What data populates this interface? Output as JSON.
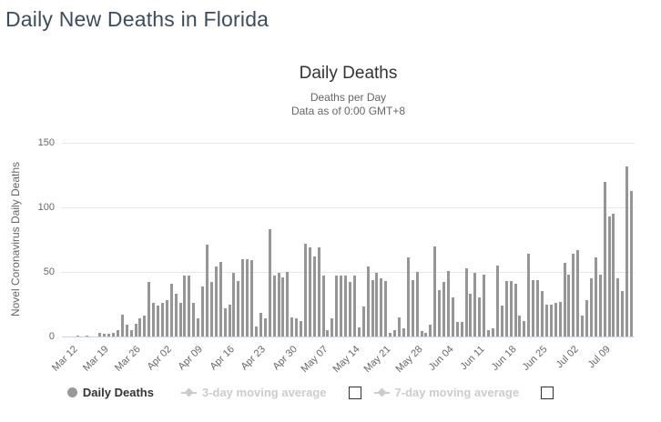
{
  "page": {
    "title": "Daily New Deaths in Florida"
  },
  "chart": {
    "title": "Daily Deaths",
    "subtitle_line1": "Deaths per Day",
    "subtitle_line2": "Data as of 0:00 GMT+8",
    "y_axis_title": "Novel Coronavirus Daily Deaths"
  },
  "legend": {
    "items": [
      {
        "label": "Daily Deaths",
        "marker": "circle",
        "enabled": true,
        "checkbox": false
      },
      {
        "label": "3-day moving average",
        "marker": "diamond-line",
        "enabled": false,
        "checkbox": true,
        "checkbox_checked": false
      },
      {
        "label": "7-day moving average",
        "marker": "diamond-line",
        "enabled": false,
        "checkbox": true,
        "checkbox_checked": false
      }
    ]
  },
  "colors": {
    "bar": "#969696",
    "grid_line": "#e6e6e6",
    "axis_line": "#ccd6eb",
    "page_title": "#3b4c5f",
    "chart_title": "#333333",
    "subtitle": "#666666",
    "axis_label": "#666666",
    "legend_active": "#333333",
    "legend_disabled": "#cccccc",
    "legend_marker": "#999999"
  },
  "chart_data": {
    "type": "bar",
    "title": "Daily Deaths",
    "subtitle": [
      "Deaths per Day",
      "Data as of 0:00 GMT+8"
    ],
    "series_name": "Daily Deaths",
    "xlabel": "",
    "ylabel": "Novel Coronavirus Daily Deaths",
    "ylim": [
      0,
      150
    ],
    "yticks": [
      0,
      50,
      100,
      150
    ],
    "grid": "horizontal",
    "legend_position": "bottom",
    "x_tick_labels": [
      "Mar 12",
      "Mar 19",
      "Mar 26",
      "Apr 02",
      "Apr 09",
      "Apr 16",
      "Apr 23",
      "Apr 30",
      "May 07",
      "May 14",
      "May 21",
      "May 28",
      "Jun 04",
      "Jun 11",
      "Jun 18",
      "Jun 25",
      "Jul 02",
      "Jul 09"
    ],
    "x_tick_indices": [
      2,
      9,
      16,
      23,
      30,
      37,
      44,
      51,
      58,
      65,
      72,
      79,
      86,
      93,
      100,
      107,
      114,
      121
    ],
    "values": [
      0,
      0,
      0,
      1,
      0,
      1,
      0,
      0,
      3,
      2,
      2,
      3,
      5,
      17,
      9,
      5,
      10,
      14,
      16,
      42,
      26,
      24,
      26,
      28,
      41,
      33,
      26,
      47,
      47,
      26,
      14,
      39,
      71,
      42,
      54,
      58,
      22,
      25,
      49,
      43,
      60,
      60,
      59,
      8,
      18,
      14,
      83,
      47,
      49,
      46,
      50,
      15,
      14,
      12,
      72,
      69,
      62,
      69,
      47,
      5,
      14,
      47,
      47,
      47,
      42,
      47,
      7,
      23,
      54,
      44,
      49,
      45,
      43,
      3,
      5,
      15,
      6,
      61,
      44,
      50,
      4,
      3,
      9,
      70,
      36,
      42,
      51,
      30,
      11,
      11,
      53,
      33,
      49,
      30,
      48,
      5,
      6,
      55,
      24,
      43,
      43,
      41,
      16,
      12,
      64,
      44,
      44,
      35,
      25,
      25,
      26,
      27,
      57,
      48,
      64,
      67,
      16,
      28,
      45,
      61,
      48,
      120,
      93,
      95,
      45,
      35,
      132,
      113
    ]
  }
}
